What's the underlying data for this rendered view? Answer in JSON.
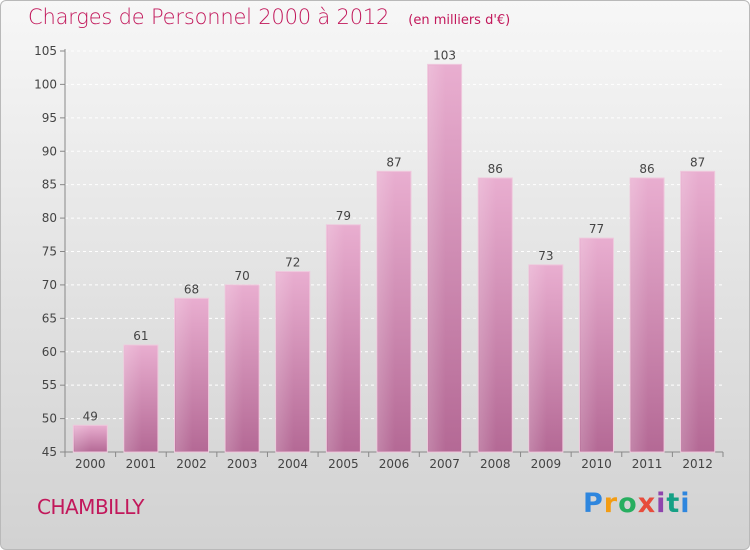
{
  "chart_data": {
    "type": "bar",
    "title": "Charges de Personnel 2000 à 2012",
    "subtitle": "(en milliers d'€)",
    "categories": [
      "2000",
      "2001",
      "2002",
      "2003",
      "2004",
      "2005",
      "2006",
      "2007",
      "2008",
      "2009",
      "2010",
      "2011",
      "2012"
    ],
    "values": [
      49,
      61,
      68,
      70,
      72,
      79,
      87,
      103,
      86,
      73,
      77,
      86,
      87
    ],
    "ylim": [
      45,
      105
    ],
    "yticks": [
      45,
      50,
      55,
      60,
      65,
      70,
      75,
      80,
      85,
      90,
      95,
      100,
      105
    ],
    "grid": true,
    "legend": "none",
    "bar_color": "#d98fba"
  },
  "footer": {
    "place_name": "CHAMBILLY",
    "logo_text": [
      "P",
      "r",
      "o",
      "x",
      "i",
      "t",
      "i"
    ]
  },
  "colors": {
    "title": "#c2185b",
    "bar_top": "#e7a9cc",
    "bar_bottom": "#b56a96"
  }
}
